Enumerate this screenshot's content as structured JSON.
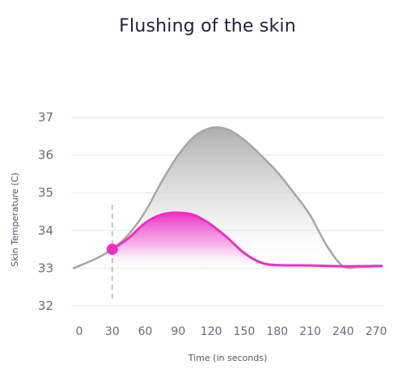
{
  "chart_data": {
    "type": "area",
    "title": "Flushing of the skin",
    "xlabel": "Time (in seconds)",
    "ylabel": "Skin Temperature (C)",
    "x_ticks": [
      0,
      30,
      60,
      90,
      120,
      150,
      180,
      210,
      240,
      270
    ],
    "y_ticks": [
      32,
      33,
      34,
      35,
      36,
      37
    ],
    "xlim": [
      0,
      270
    ],
    "ylim": [
      32,
      37
    ],
    "grid": true,
    "marker": {
      "x": 30,
      "y": 33.5,
      "style": "dashed vertical line with dot"
    },
    "series": [
      {
        "color": "#a6a6a6",
        "fill": "gradient-gray",
        "points": [
          [
            -5,
            33.0
          ],
          [
            15,
            33.25
          ],
          [
            30,
            33.5
          ],
          [
            45,
            33.9
          ],
          [
            60,
            34.5
          ],
          [
            75,
            35.3
          ],
          [
            90,
            36.0
          ],
          [
            105,
            36.5
          ],
          [
            120,
            36.72
          ],
          [
            135,
            36.68
          ],
          [
            150,
            36.4
          ],
          [
            165,
            36.0
          ],
          [
            180,
            35.55
          ],
          [
            195,
            35.0
          ],
          [
            210,
            34.4
          ],
          [
            225,
            33.6
          ],
          [
            240,
            33.05
          ],
          [
            255,
            33.03
          ],
          [
            275,
            33.05
          ]
        ]
      },
      {
        "color": "#ec2fc4",
        "fill": "gradient-magenta",
        "points": [
          [
            30,
            33.5
          ],
          [
            45,
            33.8
          ],
          [
            60,
            34.2
          ],
          [
            75,
            34.42
          ],
          [
            90,
            34.47
          ],
          [
            105,
            34.4
          ],
          [
            120,
            34.15
          ],
          [
            135,
            33.8
          ],
          [
            150,
            33.4
          ],
          [
            165,
            33.15
          ],
          [
            180,
            33.08
          ],
          [
            210,
            33.07
          ],
          [
            240,
            33.05
          ],
          [
            275,
            33.06
          ]
        ]
      }
    ]
  }
}
